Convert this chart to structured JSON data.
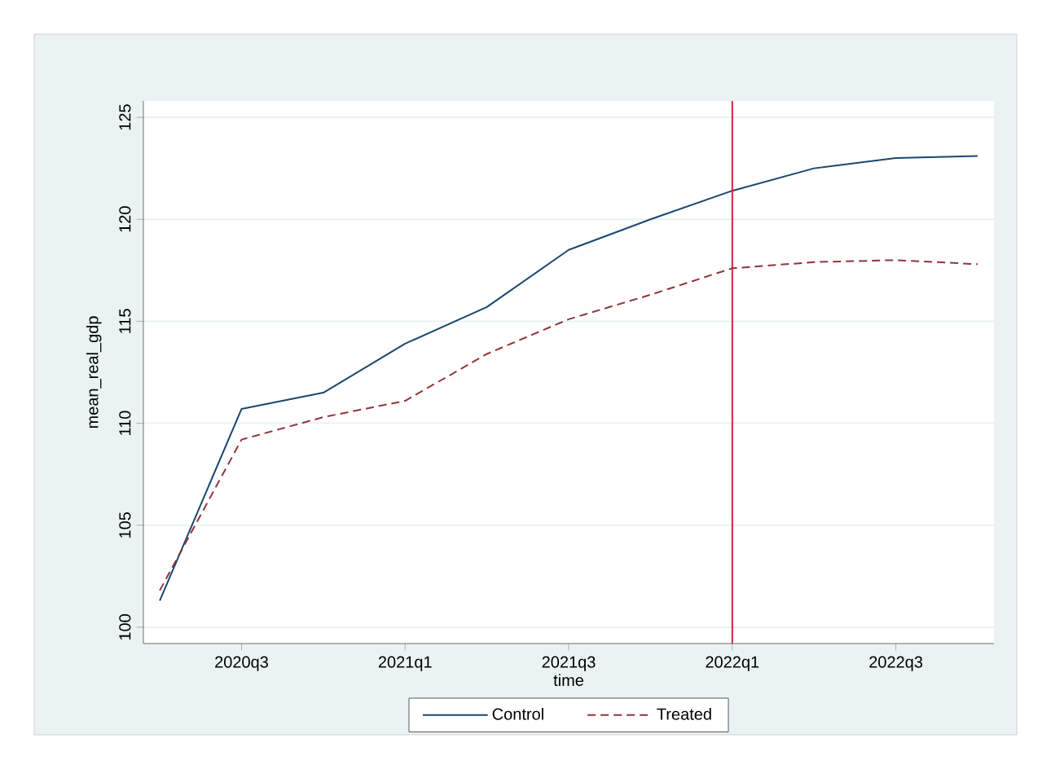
{
  "chart_data": {
    "type": "line",
    "xlabel": "time",
    "ylabel": "mean_real_gdp",
    "categories": [
      null,
      "2020q3",
      null,
      "2021q1",
      null,
      "2021q3",
      null,
      "2022q1",
      null,
      "2022q3",
      null
    ],
    "series": [
      {
        "name": "Control",
        "color": "#1a476f",
        "line_style": "solid",
        "values": [
          101.3,
          110.7,
          111.5,
          113.9,
          115.7,
          118.5,
          120.0,
          121.4,
          122.5,
          123.0,
          123.1
        ]
      },
      {
        "name": "Treated",
        "color": "#90353b",
        "line_style": "dashed",
        "values": [
          101.8,
          109.2,
          110.3,
          111.1,
          113.4,
          115.1,
          116.3,
          117.6,
          117.9,
          118.0,
          117.8
        ]
      }
    ],
    "ylim": [
      99.2,
      125.8
    ],
    "yticks": [
      100,
      105,
      110,
      115,
      120,
      125
    ],
    "ref_lines": [
      {
        "axis": "x",
        "value": "2022q1",
        "color": "#c8203c"
      }
    ],
    "grid": "y",
    "legend": "bottom",
    "marker": "none"
  }
}
